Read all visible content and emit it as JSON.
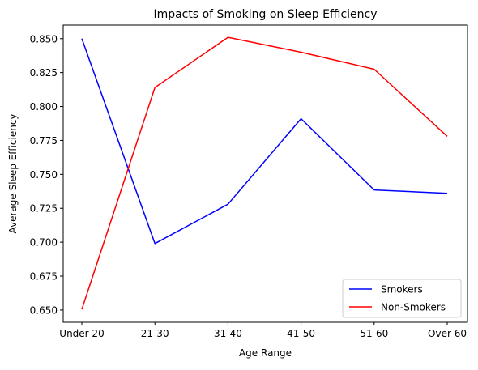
{
  "chart_data": {
    "type": "line",
    "title": "Impacts of Smoking on Sleep Efficiency",
    "xlabel": "Age Range",
    "ylabel": "Average Sleep Efficiency",
    "categories": [
      "Under 20",
      "21-30",
      "31-40",
      "41-50",
      "51-60",
      "Over 60"
    ],
    "ylim": [
      0.641,
      0.86
    ],
    "yticks": [
      0.65,
      0.675,
      0.7,
      0.725,
      0.75,
      0.775,
      0.8,
      0.825,
      0.85
    ],
    "ytick_labels": [
      "0.650",
      "0.675",
      "0.700",
      "0.725",
      "0.750",
      "0.775",
      "0.800",
      "0.825",
      "0.850"
    ],
    "grid": false,
    "legend_position": "lower right",
    "series": [
      {
        "name": "Smokers",
        "color": "#0000ff",
        "values": [
          0.85,
          0.699,
          0.728,
          0.791,
          0.7385,
          0.736
        ]
      },
      {
        "name": "Non-Smokers",
        "color": "#ff0000",
        "values": [
          0.6505,
          0.814,
          0.851,
          0.84,
          0.8275,
          0.778
        ]
      }
    ]
  }
}
